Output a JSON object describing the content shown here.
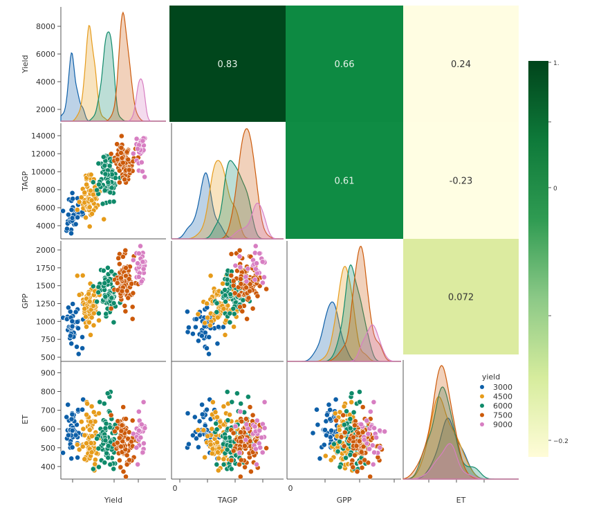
{
  "chart_data": {
    "type": "pairplot",
    "variables": [
      "Yield",
      "TAGP",
      "GPP",
      "ET"
    ],
    "hue": {
      "title": "yield",
      "classes": [
        "3000",
        "4500",
        "6000",
        "7500",
        "9000"
      ],
      "colors": [
        "#0d5fa8",
        "#e69b1a",
        "#0f8a6a",
        "#cc5a0a",
        "#d77ec2"
      ]
    },
    "axis_ticks": {
      "Yield": [
        "2000",
        "4000",
        "6000",
        "8000"
      ],
      "TAGP": [
        "4000",
        "6000",
        "8000",
        "10000",
        "12000",
        "14000"
      ],
      "GPP": [
        "500",
        "750",
        "1000",
        "1250",
        "1500",
        "1750",
        "2000"
      ],
      "ET": [
        "400",
        "500",
        "600",
        "700",
        "800",
        "900"
      ],
      "x_zero_label": "0"
    },
    "class_means_estimated": {
      "3000": {
        "Yield": 3000,
        "TAGP": 4500,
        "GPP": 900,
        "ET": 570
      },
      "4500": {
        "Yield": 4500,
        "TAGP": 7200,
        "GPP": 1200,
        "ET": 560
      },
      "6000": {
        "Yield": 6000,
        "TAGP": 9600,
        "GPP": 1380,
        "ET": 540
      },
      "7500": {
        "Yield": 7500,
        "TAGP": 11200,
        "GPP": 1560,
        "ET": 500
      },
      "9000": {
        "Yield": 8900,
        "TAGP": 12600,
        "GPP": 1740,
        "ET": 555
      }
    },
    "correlations": [
      {
        "row": "Yield",
        "col": "TAGP",
        "value": "0.83",
        "color": "#00461c"
      },
      {
        "row": "Yield",
        "col": "GPP",
        "value": "0.66",
        "color": "#0d8a42"
      },
      {
        "row": "Yield",
        "col": "ET",
        "value": "0.24",
        "color": "#fffde2"
      },
      {
        "row": "TAGP",
        "col": "GPP",
        "value": "0.61",
        "color": "#0f8c44"
      },
      {
        "row": "TAGP",
        "col": "ET",
        "value": "-0.23",
        "color": "#fffee3"
      },
      {
        "row": "GPP",
        "col": "ET",
        "value": "0.072",
        "color": "#dcebA0"
      }
    ],
    "colorbar": {
      "labels": [
        "1.",
        "0",
        "−0.2"
      ],
      "colors": [
        "#00441b",
        "#0e7a3a",
        "#2f9b52",
        "#8cc987",
        "#d6ec9d",
        "#fffcd8"
      ]
    }
  }
}
